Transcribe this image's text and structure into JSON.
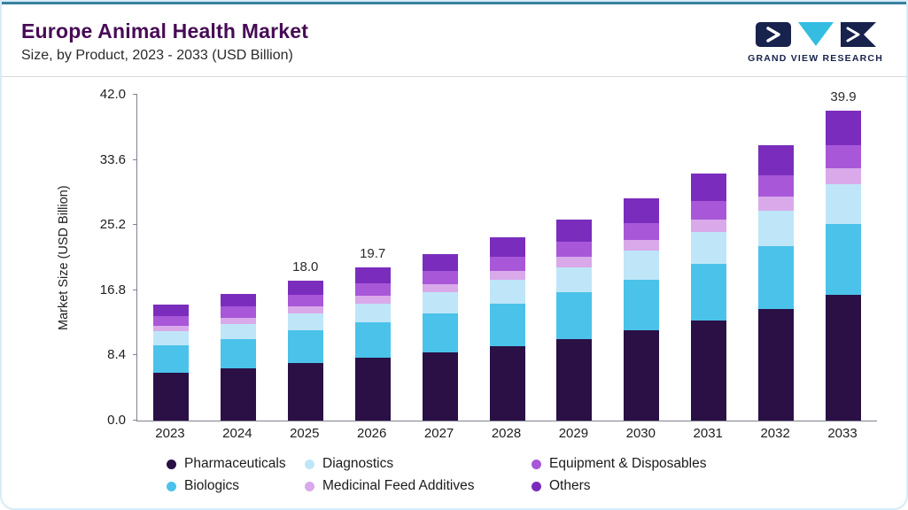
{
  "header": {
    "title": "Europe Animal Health Market",
    "subtitle": "Size, by Product, 2023 - 2033 (USD Billion)",
    "logo_text": "GRAND VIEW RESEARCH"
  },
  "chart_data": {
    "type": "bar",
    "stacked": true,
    "title": "Europe Animal Health Market Size, by Product, 2023 - 2033 (USD Billion)",
    "xlabel": "",
    "ylabel": "Market Size (USD Billion)",
    "ylim": [
      0,
      42
    ],
    "yticks": [
      0.0,
      8.4,
      16.8,
      25.2,
      33.6,
      42.0
    ],
    "grid": false,
    "categories": [
      "2023",
      "2024",
      "2025",
      "2026",
      "2027",
      "2028",
      "2029",
      "2030",
      "2031",
      "2032",
      "2033"
    ],
    "series": [
      {
        "name": "Pharmaceuticals",
        "color": "#2a1045",
        "values": [
          6.2,
          6.7,
          7.4,
          8.1,
          8.8,
          9.6,
          10.5,
          11.6,
          12.9,
          14.4,
          16.2
        ]
      },
      {
        "name": "Biologics",
        "color": "#4bc2ea",
        "values": [
          3.5,
          3.8,
          4.2,
          4.6,
          5.0,
          5.5,
          6.0,
          6.6,
          7.3,
          8.1,
          9.1
        ]
      },
      {
        "name": "Diagnostics",
        "color": "#bfe6f8",
        "values": [
          1.8,
          2.0,
          2.2,
          2.4,
          2.7,
          3.0,
          3.3,
          3.7,
          4.1,
          4.6,
          5.2
        ]
      },
      {
        "name": "Medicinal Feed Additives",
        "color": "#d9a9ea",
        "values": [
          0.7,
          0.8,
          0.9,
          1.0,
          1.1,
          1.2,
          1.3,
          1.4,
          1.6,
          1.8,
          2.0
        ]
      },
      {
        "name": "Equipment & Disposables",
        "color": "#a857d8",
        "values": [
          1.3,
          1.4,
          1.5,
          1.6,
          1.7,
          1.8,
          2.0,
          2.2,
          2.4,
          2.7,
          3.0
        ]
      },
      {
        "name": "Others",
        "color": "#7a2dbd",
        "values": [
          1.5,
          1.6,
          1.8,
          2.0,
          2.2,
          2.5,
          2.8,
          3.1,
          3.5,
          3.9,
          4.4
        ]
      }
    ],
    "total_labels": {
      "2025": "18.0",
      "2026": "19.7",
      "2033": "39.9"
    },
    "legend": {
      "position": "bottom",
      "rows": [
        [
          "Pharmaceuticals",
          "Diagnostics",
          "Equipment & Disposables"
        ],
        [
          "Biologics",
          "Medicinal Feed Additives",
          "Others"
        ]
      ]
    }
  }
}
